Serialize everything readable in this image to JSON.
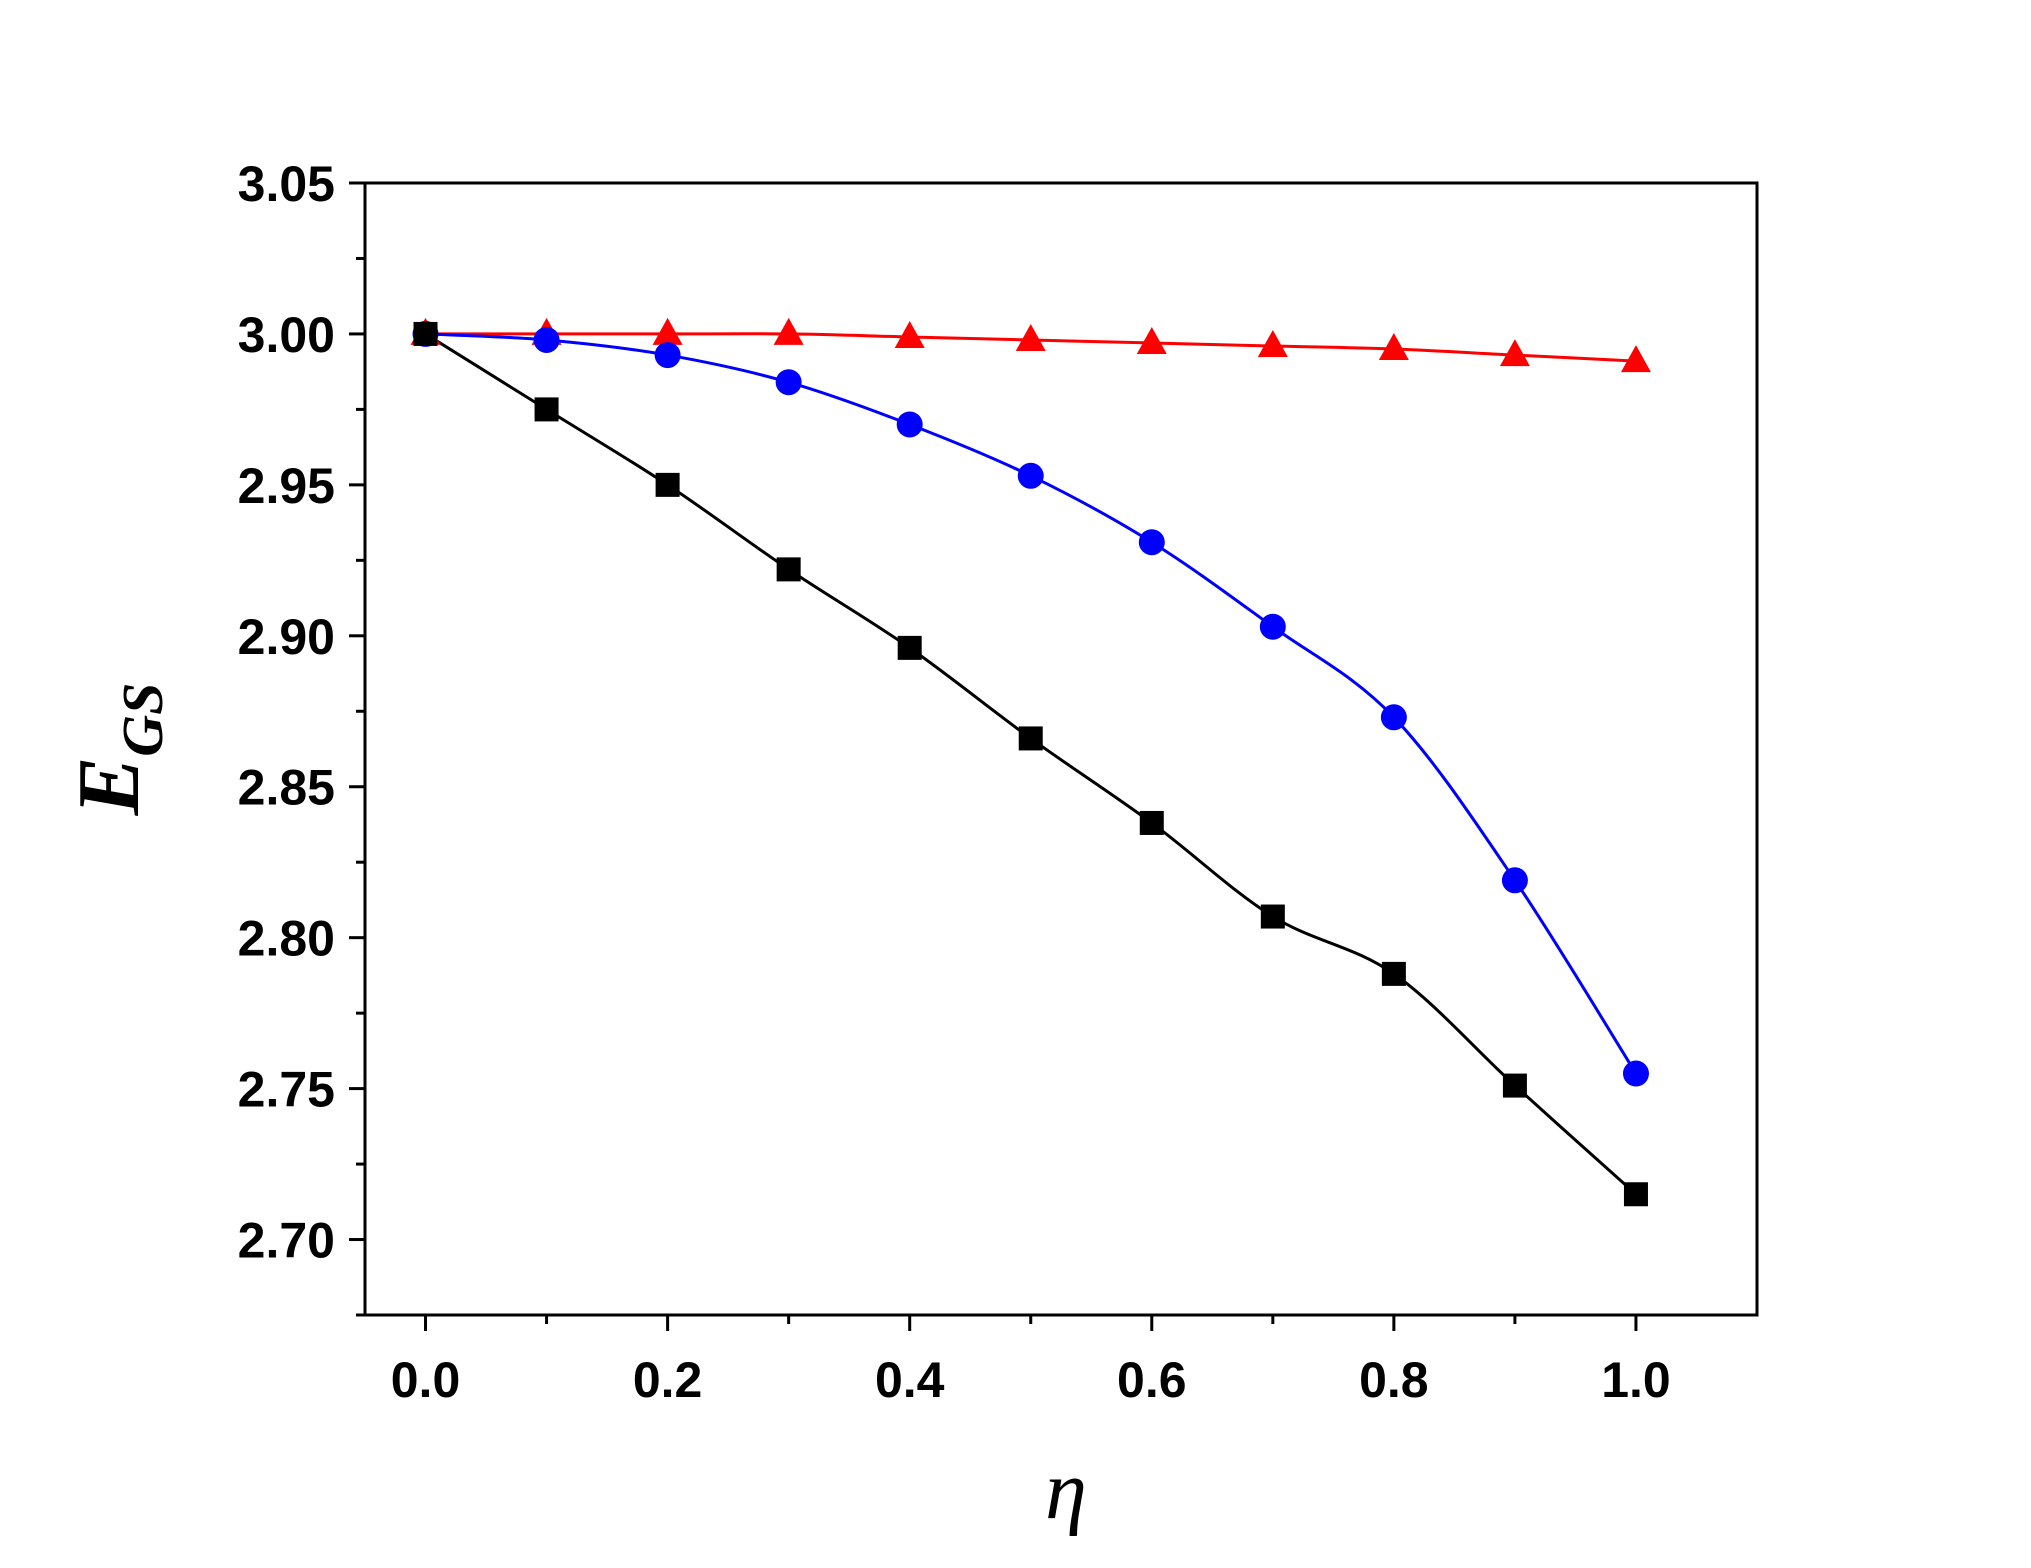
{
  "chart_data": {
    "type": "line",
    "title": "",
    "xlabel": "η",
    "ylabel": {
      "main": "E",
      "subscript": "GS"
    },
    "xlim": [
      -0.05,
      1.1
    ],
    "ylim": [
      2.675,
      3.05
    ],
    "x_ticks": [
      0.0,
      0.2,
      0.4,
      0.6,
      0.8,
      1.0
    ],
    "x_tick_labels": [
      "0.0",
      "0.2",
      "0.4",
      "0.6",
      "0.8",
      "1.0"
    ],
    "x_minor_ticks": [
      0.1,
      0.3,
      0.5,
      0.7,
      0.9
    ],
    "y_ticks": [
      2.7,
      2.75,
      2.8,
      2.85,
      2.9,
      2.95,
      3.0,
      3.05
    ],
    "y_tick_labels": [
      "2.70",
      "2.75",
      "2.80",
      "2.85",
      "2.90",
      "2.95",
      "3.00",
      "3.05"
    ],
    "y_minor_ticks": [
      2.675,
      2.725,
      2.775,
      2.825,
      2.875,
      2.925,
      2.975,
      3.025
    ],
    "grid": false,
    "legend": "none",
    "x": [
      0.0,
      0.1,
      0.2,
      0.3,
      0.4,
      0.5,
      0.6,
      0.7,
      0.8,
      0.9,
      1.0
    ],
    "series": [
      {
        "marker": "triangle",
        "color": "#ff0000",
        "values": [
          3.0,
          3.0,
          3.0,
          3.0,
          2.999,
          2.998,
          2.997,
          2.996,
          2.995,
          2.993,
          2.991
        ]
      },
      {
        "marker": "circle",
        "color": "#0000ff",
        "values": [
          3.0,
          2.998,
          2.993,
          2.984,
          2.97,
          2.953,
          2.931,
          2.903,
          2.873,
          2.819,
          2.755
        ]
      },
      {
        "marker": "square",
        "color": "#000000",
        "values": [
          3.0,
          2.975,
          2.95,
          2.922,
          2.896,
          2.866,
          2.838,
          2.807,
          2.788,
          2.751,
          2.715
        ]
      }
    ]
  }
}
